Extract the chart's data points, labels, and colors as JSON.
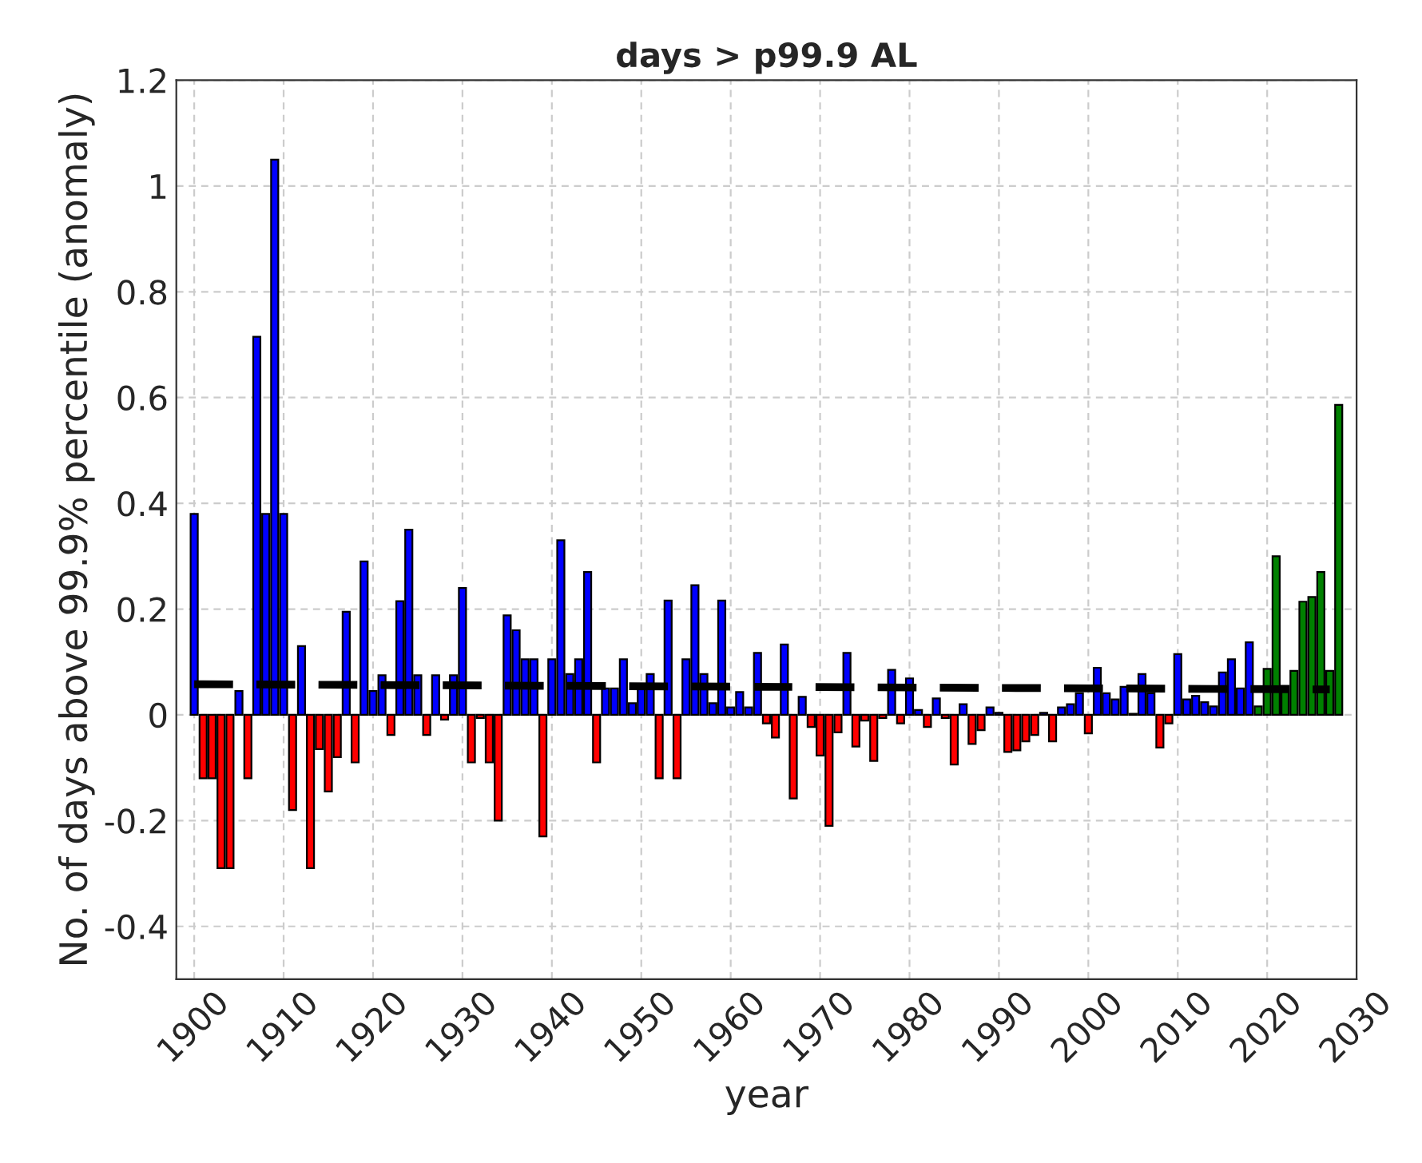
{
  "chart_data": {
    "type": "bar",
    "title": "days > p99.9 AL",
    "xlabel": "year",
    "ylabel": "No. of days above 99.9% percentile (anomaly)",
    "x": [
      1900,
      1901,
      1902,
      1903,
      1904,
      1905,
      1906,
      1907,
      1908,
      1909,
      1910,
      1911,
      1912,
      1913,
      1914,
      1915,
      1916,
      1917,
      1918,
      1919,
      1920,
      1921,
      1922,
      1923,
      1924,
      1925,
      1926,
      1927,
      1928,
      1929,
      1930,
      1931,
      1932,
      1933,
      1934,
      1935,
      1936,
      1937,
      1938,
      1939,
      1940,
      1941,
      1942,
      1943,
      1944,
      1945,
      1946,
      1947,
      1948,
      1949,
      1950,
      1951,
      1952,
      1953,
      1954,
      1955,
      1956,
      1957,
      1958,
      1959,
      1960,
      1961,
      1962,
      1963,
      1964,
      1965,
      1966,
      1967,
      1968,
      1969,
      1970,
      1971,
      1972,
      1973,
      1974,
      1975,
      1976,
      1977,
      1978,
      1979,
      1980,
      1981,
      1982,
      1983,
      1984,
      1985,
      1986,
      1987,
      1988,
      1989,
      1990,
      1991,
      1992,
      1993,
      1994,
      1995,
      1996,
      1997,
      1998,
      1999,
      2000,
      2001,
      2002,
      2003,
      2004,
      2005,
      2006,
      2007,
      2008,
      2009,
      2010,
      2011,
      2012,
      2013,
      2014,
      2015,
      2016,
      2017,
      2018,
      2019,
      2020,
      2021,
      2022,
      2023,
      2024,
      2025,
      2026,
      2027,
      2028
    ],
    "series": [
      {
        "values": [
          0.38,
          -0.12,
          -0.12,
          -0.29,
          -0.29,
          0.045,
          -0.12,
          0.715,
          0.38,
          1.05,
          0.38,
          -0.18,
          0.13,
          -0.29,
          -0.065,
          -0.145,
          -0.08,
          0.195,
          -0.09,
          0.29,
          0.045,
          0.075,
          -0.038,
          0.215,
          0.35,
          0.075,
          -0.038,
          0.075,
          -0.009,
          0.075,
          0.24,
          -0.09,
          -0.006,
          -0.09,
          -0.2,
          0.188,
          0.16,
          0.105,
          0.105,
          -0.23,
          0.105,
          0.33,
          0.077,
          0.105,
          0.27,
          -0.09,
          0.05,
          0.05,
          0.105,
          0.022,
          0.05,
          0.077,
          -0.12,
          0.216,
          -0.12,
          0.105,
          0.245,
          0.077,
          0.022,
          0.216,
          0.014,
          0.043,
          0.014,
          0.117,
          -0.016,
          -0.043,
          0.133,
          -0.158,
          0.034,
          -0.023,
          -0.077,
          -0.21,
          -0.033,
          0.117,
          -0.06,
          -0.011,
          -0.087,
          -0.006,
          0.085,
          -0.016,
          0.069,
          0.009,
          -0.023,
          0.031,
          -0.006,
          -0.094,
          0.02,
          -0.055,
          -0.029,
          0.014,
          0.004,
          -0.07,
          -0.067,
          -0.05,
          -0.038,
          0.004,
          -0.05,
          0.014,
          0.02,
          0.041,
          -0.035,
          0.089,
          0.041,
          0.029,
          0.053,
          0.002,
          0.077,
          0.041,
          -0.062,
          -0.016,
          0.115,
          0.029,
          0.036,
          0.024,
          0.016,
          0.08,
          0.105,
          0.05,
          0.137,
          0.016,
          0.087,
          0.3,
          0.055,
          0.083,
          0.214,
          0.223,
          0.27,
          0.083,
          0.586
        ],
        "colors": [
          "#0000ff",
          "#ff0000",
          "#ff0000",
          "#ff0000",
          "#ff0000",
          "#0000ff",
          "#ff0000",
          "#0000ff",
          "#0000ff",
          "#0000ff",
          "#0000ff",
          "#ff0000",
          "#0000ff",
          "#ff0000",
          "#ff0000",
          "#ff0000",
          "#ff0000",
          "#0000ff",
          "#ff0000",
          "#0000ff",
          "#0000ff",
          "#0000ff",
          "#ff0000",
          "#0000ff",
          "#0000ff",
          "#0000ff",
          "#ff0000",
          "#0000ff",
          "#ff0000",
          "#0000ff",
          "#0000ff",
          "#ff0000",
          "#ff0000",
          "#ff0000",
          "#ff0000",
          "#0000ff",
          "#0000ff",
          "#0000ff",
          "#0000ff",
          "#ff0000",
          "#0000ff",
          "#0000ff",
          "#0000ff",
          "#0000ff",
          "#0000ff",
          "#ff0000",
          "#0000ff",
          "#0000ff",
          "#0000ff",
          "#0000ff",
          "#0000ff",
          "#0000ff",
          "#ff0000",
          "#0000ff",
          "#ff0000",
          "#0000ff",
          "#0000ff",
          "#0000ff",
          "#0000ff",
          "#0000ff",
          "#0000ff",
          "#0000ff",
          "#0000ff",
          "#0000ff",
          "#ff0000",
          "#ff0000",
          "#0000ff",
          "#ff0000",
          "#0000ff",
          "#ff0000",
          "#ff0000",
          "#ff0000",
          "#ff0000",
          "#0000ff",
          "#ff0000",
          "#ff0000",
          "#ff0000",
          "#ff0000",
          "#0000ff",
          "#ff0000",
          "#0000ff",
          "#0000ff",
          "#ff0000",
          "#0000ff",
          "#ff0000",
          "#ff0000",
          "#0000ff",
          "#ff0000",
          "#ff0000",
          "#0000ff",
          "#0000ff",
          "#ff0000",
          "#ff0000",
          "#ff0000",
          "#ff0000",
          "#0000ff",
          "#ff0000",
          "#0000ff",
          "#0000ff",
          "#0000ff",
          "#ff0000",
          "#0000ff",
          "#0000ff",
          "#0000ff",
          "#0000ff",
          "#0000ff",
          "#0000ff",
          "#0000ff",
          "#ff0000",
          "#ff0000",
          "#0000ff",
          "#0000ff",
          "#0000ff",
          "#0000ff",
          "#0000ff",
          "#0000ff",
          "#0000ff",
          "#0000ff",
          "#0000ff",
          "#008000",
          "#008000",
          "#008000",
          "#008000",
          "#008000",
          "#008000",
          "#008000",
          "#008000",
          "#008000",
          "#008000"
        ]
      },
      {
        "type": "line",
        "x": [
          1900,
          2027
        ],
        "values": [
          0.058,
          0.048
        ],
        "color": "#000000",
        "line_style": "dashed"
      }
    ],
    "xlim": [
      1898,
      2030
    ],
    "xticks": [
      1900,
      1910,
      1920,
      1930,
      1940,
      1950,
      1960,
      1970,
      1980,
      1990,
      2000,
      2010,
      2020,
      2030
    ],
    "ylim": [
      -0.5,
      1.2
    ],
    "yticks": [
      -0.4,
      -0.2,
      0,
      0.2,
      0.4,
      0.6,
      0.8,
      1,
      1.2
    ],
    "grid": true,
    "legend": false
  }
}
